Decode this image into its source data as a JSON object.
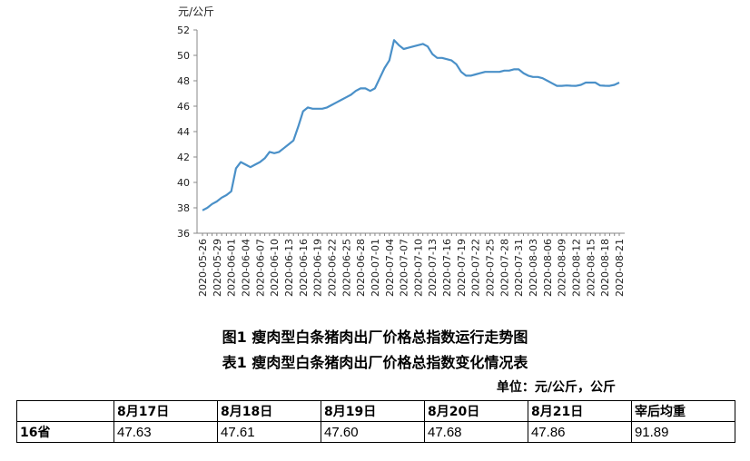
{
  "chart_data": {
    "type": "line",
    "title": "",
    "ylabel": "元/公斤",
    "xlabel": "",
    "ylim": [
      36,
      52
    ],
    "yticks": [
      36,
      38,
      40,
      42,
      44,
      46,
      48,
      50,
      52
    ],
    "grid": false,
    "legend": "none",
    "line_color": "#4a90c8",
    "x": [
      "2020-05-26",
      "2020-05-27",
      "2020-05-28",
      "2020-05-29",
      "2020-05-30",
      "2020-05-31",
      "2020-06-01",
      "2020-06-02",
      "2020-06-03",
      "2020-06-04",
      "2020-06-05",
      "2020-06-06",
      "2020-06-07",
      "2020-06-08",
      "2020-06-09",
      "2020-06-10",
      "2020-06-11",
      "2020-06-12",
      "2020-06-13",
      "2020-06-14",
      "2020-06-15",
      "2020-06-16",
      "2020-06-17",
      "2020-06-18",
      "2020-06-19",
      "2020-06-20",
      "2020-06-21",
      "2020-06-22",
      "2020-06-23",
      "2020-06-24",
      "2020-06-25",
      "2020-06-26",
      "2020-06-27",
      "2020-06-28",
      "2020-06-29",
      "2020-06-30",
      "2020-07-01",
      "2020-07-02",
      "2020-07-03",
      "2020-07-04",
      "2020-07-05",
      "2020-07-06",
      "2020-07-07",
      "2020-07-08",
      "2020-07-09",
      "2020-07-10",
      "2020-07-11",
      "2020-07-12",
      "2020-07-13",
      "2020-07-14",
      "2020-07-15",
      "2020-07-16",
      "2020-07-17",
      "2020-07-18",
      "2020-07-19",
      "2020-07-20",
      "2020-07-21",
      "2020-07-22",
      "2020-07-23",
      "2020-07-24",
      "2020-07-25",
      "2020-07-26",
      "2020-07-27",
      "2020-07-28",
      "2020-07-29",
      "2020-07-30",
      "2020-07-31",
      "2020-08-01",
      "2020-08-02",
      "2020-08-03",
      "2020-08-04",
      "2020-08-05",
      "2020-08-06",
      "2020-08-07",
      "2020-08-08",
      "2020-08-09",
      "2020-08-10",
      "2020-08-11",
      "2020-08-12",
      "2020-08-13",
      "2020-08-14",
      "2020-08-15",
      "2020-08-16",
      "2020-08-17",
      "2020-08-18",
      "2020-08-19",
      "2020-08-20",
      "2020-08-21"
    ],
    "xtick_labels": [
      "2020-05-26",
      "2020-05-29",
      "2020-06-01",
      "2020-06-04",
      "2020-06-07",
      "2020-06-10",
      "2020-06-13",
      "2020-06-16",
      "2020-06-19",
      "2020-06-22",
      "2020-06-25",
      "2020-06-28",
      "2020-07-01",
      "2020-07-04",
      "2020-07-07",
      "2020-07-10",
      "2020-07-13",
      "2020-07-16",
      "2020-07-19",
      "2020-07-22",
      "2020-07-25",
      "2020-07-28",
      "2020-07-31",
      "2020-08-03",
      "2020-08-06",
      "2020-08-09",
      "2020-08-12",
      "2020-08-15",
      "2020-08-18",
      "2020-08-21"
    ],
    "series": [
      {
        "name": "",
        "values": [
          37.8,
          38.0,
          38.3,
          38.5,
          38.8,
          39.0,
          39.3,
          41.1,
          41.6,
          41.4,
          41.2,
          41.4,
          41.6,
          41.9,
          42.4,
          42.3,
          42.4,
          42.7,
          43.0,
          43.3,
          44.4,
          45.6,
          45.9,
          45.8,
          45.8,
          45.8,
          45.9,
          46.1,
          46.3,
          46.5,
          46.7,
          46.9,
          47.2,
          47.4,
          47.4,
          47.2,
          47.4,
          48.2,
          49.0,
          49.6,
          51.2,
          50.8,
          50.5,
          50.6,
          50.7,
          50.8,
          50.9,
          50.7,
          50.1,
          49.8,
          49.8,
          49.7,
          49.6,
          49.3,
          48.7,
          48.4,
          48.4,
          48.5,
          48.6,
          48.7,
          48.7,
          48.7,
          48.7,
          48.8,
          48.8,
          48.9,
          48.9,
          48.6,
          48.4,
          48.3,
          48.3,
          48.2,
          48.0,
          47.8,
          47.6,
          47.6,
          47.63,
          47.61,
          47.6,
          47.68,
          47.86,
          47.86,
          47.86,
          47.63,
          47.61,
          47.6,
          47.68,
          47.86
        ]
      }
    ]
  },
  "unit_axis_label": "元/公斤",
  "figure_caption": "图1 瘦肉型白条猪肉出厂价格总指数运行走势图",
  "table_caption": "表1 瘦肉型白条猪肉出厂价格总指数变化情况表",
  "table_unit_note": "单位：元/公斤，公斤",
  "table": {
    "headers": [
      "",
      "8月17日",
      "8月18日",
      "8月19日",
      "8月20日",
      "8月21日",
      "宰后均重"
    ],
    "rows": [
      {
        "label": "16省",
        "values": [
          "47.63",
          "47.61",
          "47.60",
          "47.68",
          "47.86",
          "91.89"
        ]
      }
    ]
  }
}
